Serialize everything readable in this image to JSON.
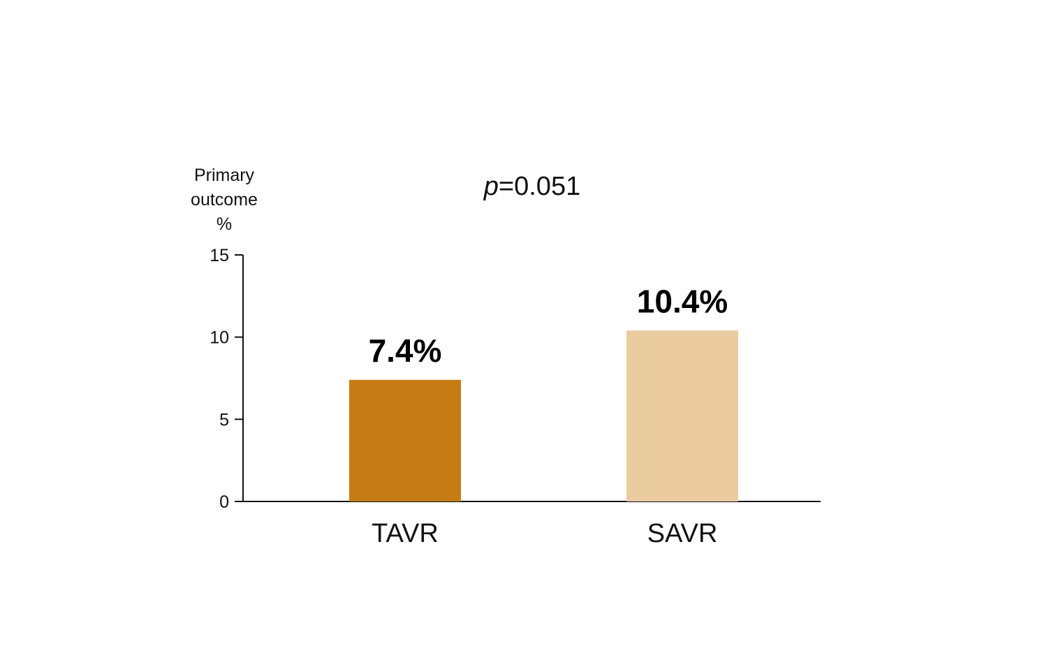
{
  "chart_data": {
    "type": "bar",
    "title": "",
    "ylabel_lines": [
      "Primary",
      "outcome",
      "%"
    ],
    "xlabel": "",
    "categories": [
      "TAVR",
      "SAVR"
    ],
    "values": [
      7.4,
      10.4
    ],
    "data_labels": [
      "7.4%",
      "10.4%"
    ],
    "colors": [
      "#c67c15",
      "#eacba0"
    ],
    "ylim": [
      0,
      15
    ],
    "yticks": [
      0,
      5,
      10,
      15
    ],
    "grid": false,
    "annotation": {
      "p_symbol": "p",
      "p_text": "=0.051"
    }
  }
}
